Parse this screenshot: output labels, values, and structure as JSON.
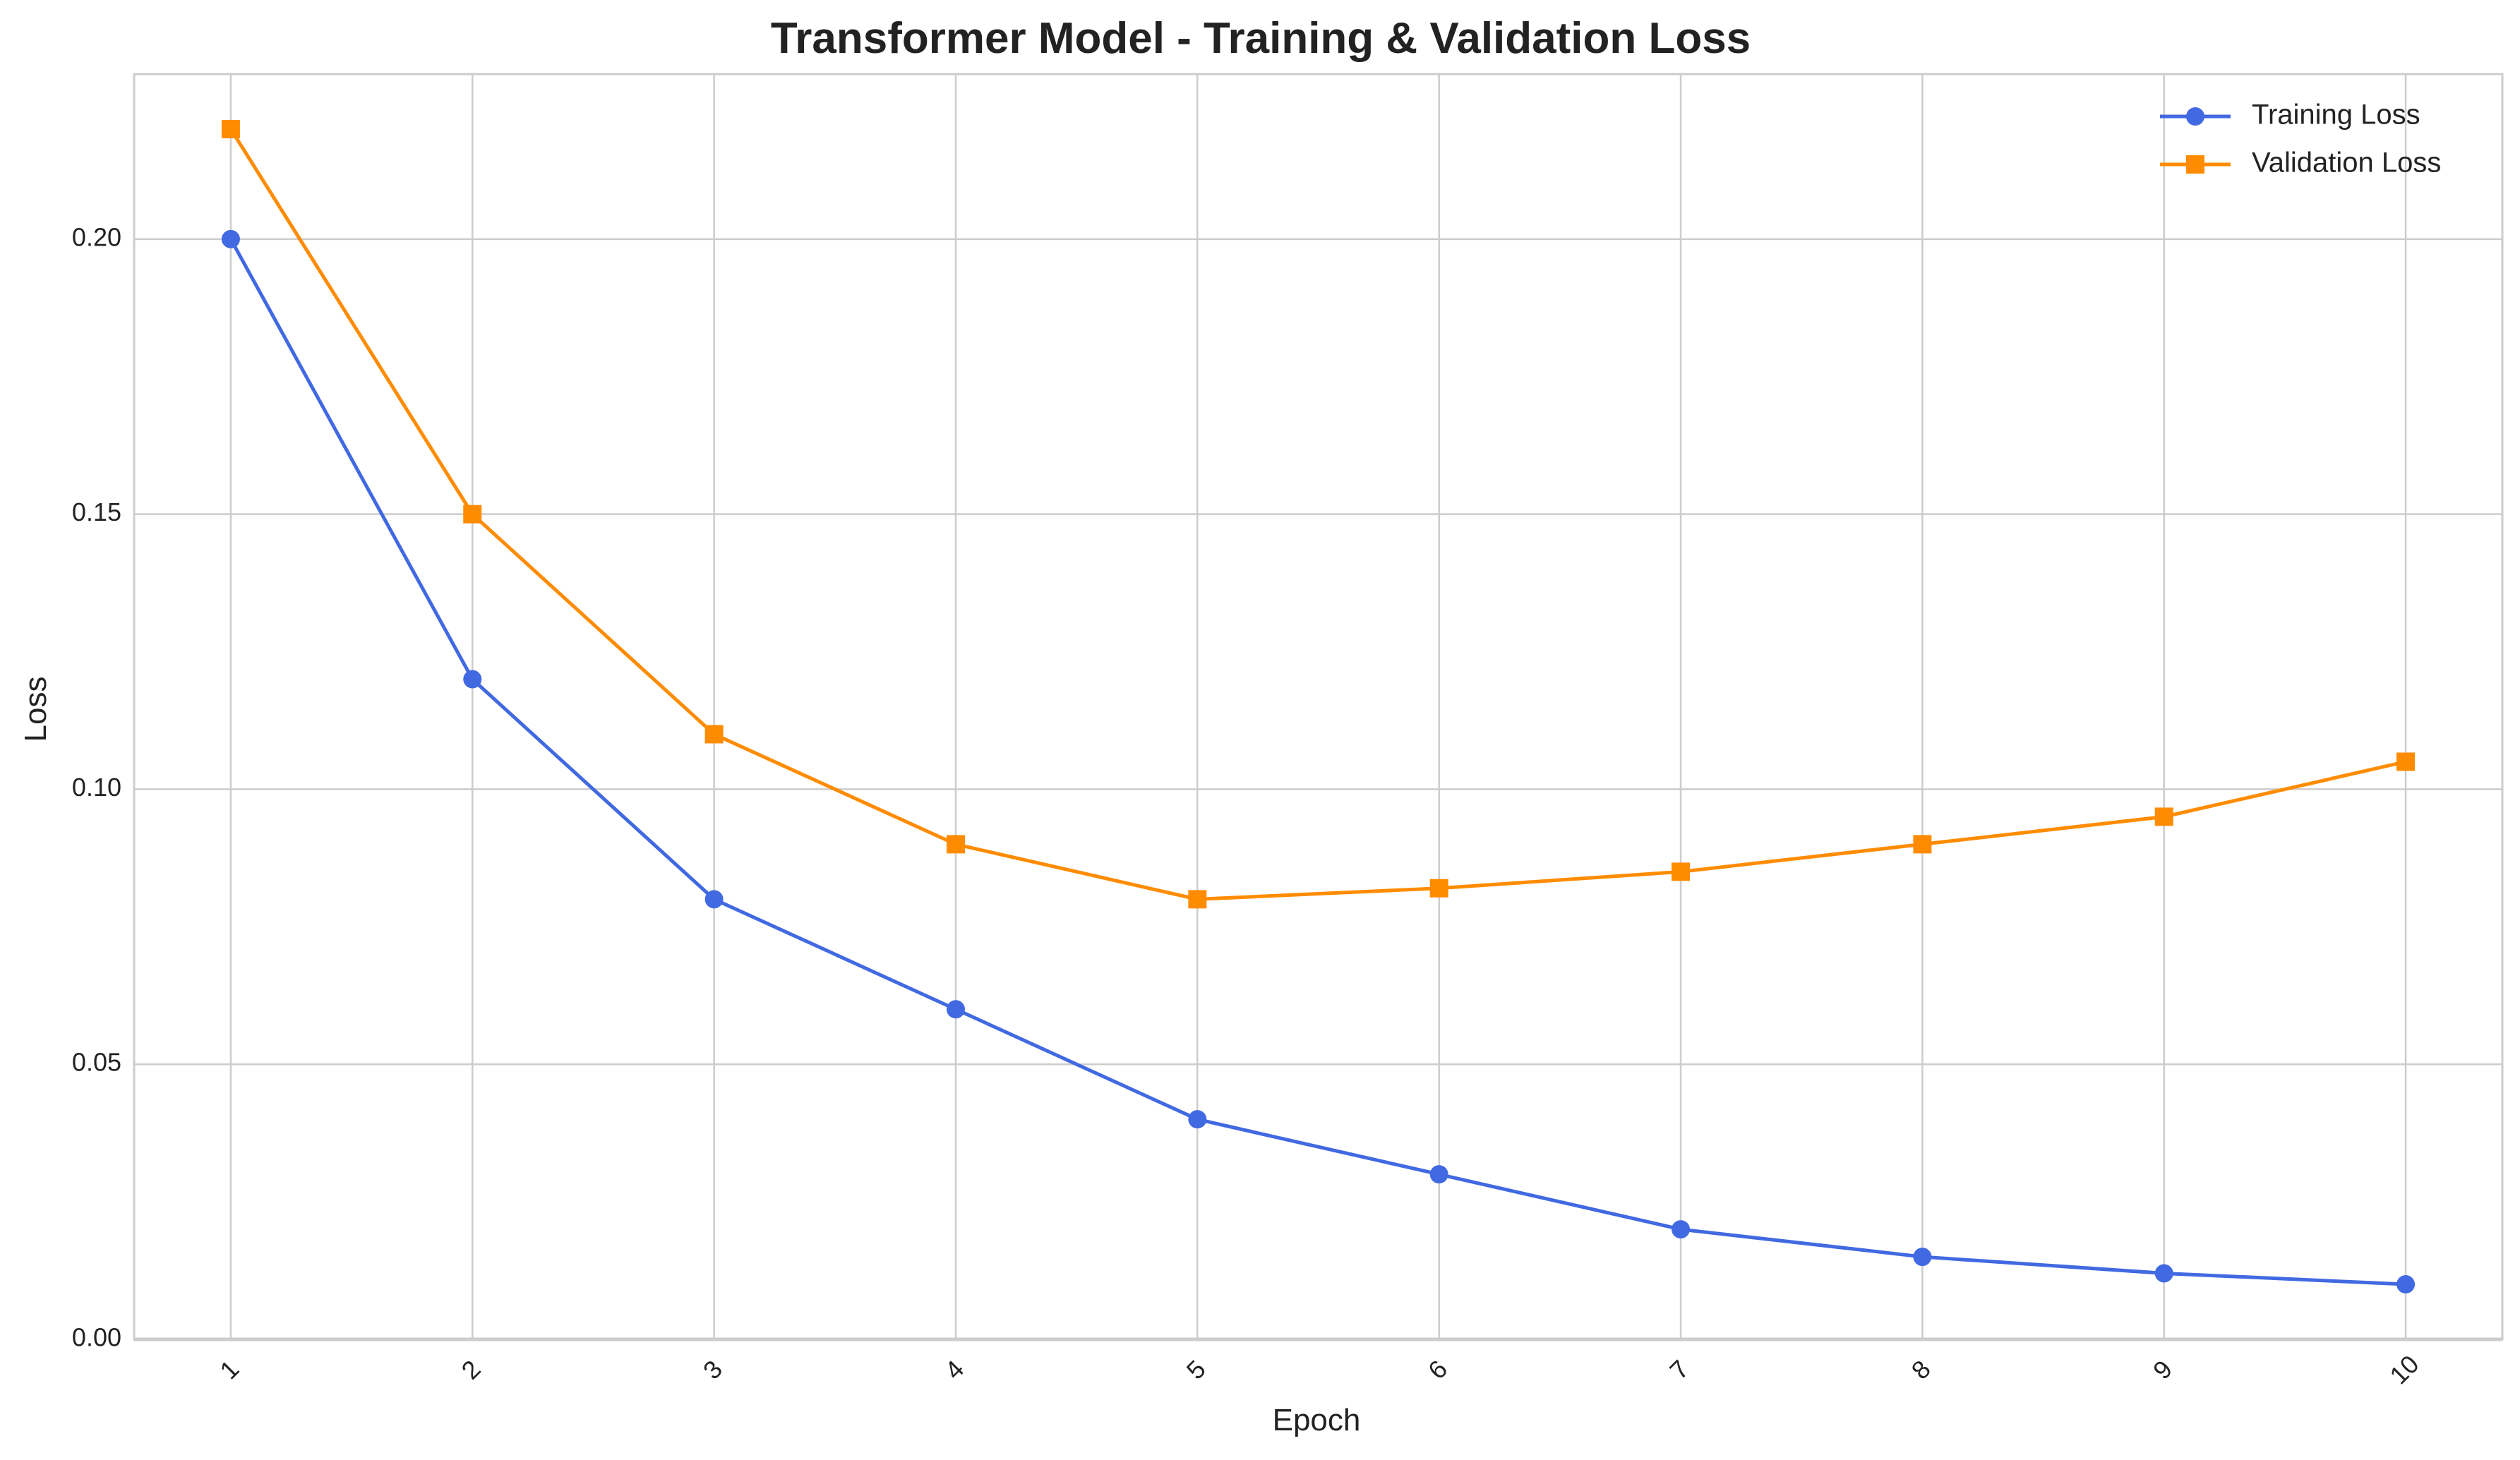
{
  "chart_data": {
    "type": "line",
    "title": "Transformer Model - Training & Validation Loss",
    "xlabel": "Epoch",
    "ylabel": "Loss",
    "x": [
      1,
      2,
      3,
      4,
      5,
      6,
      7,
      8,
      9,
      10
    ],
    "x_tick_labels": [
      "1",
      "2",
      "3",
      "4",
      "5",
      "6",
      "7",
      "8",
      "9",
      "10"
    ],
    "y_ticks": [
      0.0,
      0.05,
      0.1,
      0.15,
      0.2
    ],
    "y_tick_labels": [
      "0.00",
      "0.05",
      "0.10",
      "0.15",
      "0.20"
    ],
    "xlim": [
      0.6,
      10.4
    ],
    "ylim": [
      0.0,
      0.23
    ],
    "grid": true,
    "legend_position": "top-right",
    "series": [
      {
        "name": "Training Loss",
        "color": "#4169E1",
        "marker": "circle",
        "values": [
          0.2,
          0.12,
          0.08,
          0.06,
          0.04,
          0.03,
          0.02,
          0.015,
          0.012,
          0.01
        ]
      },
      {
        "name": "Validation Loss",
        "color": "#FF8C00",
        "marker": "square",
        "values": [
          0.22,
          0.15,
          0.11,
          0.09,
          0.08,
          0.082,
          0.085,
          0.09,
          0.095,
          0.105
        ]
      }
    ]
  }
}
